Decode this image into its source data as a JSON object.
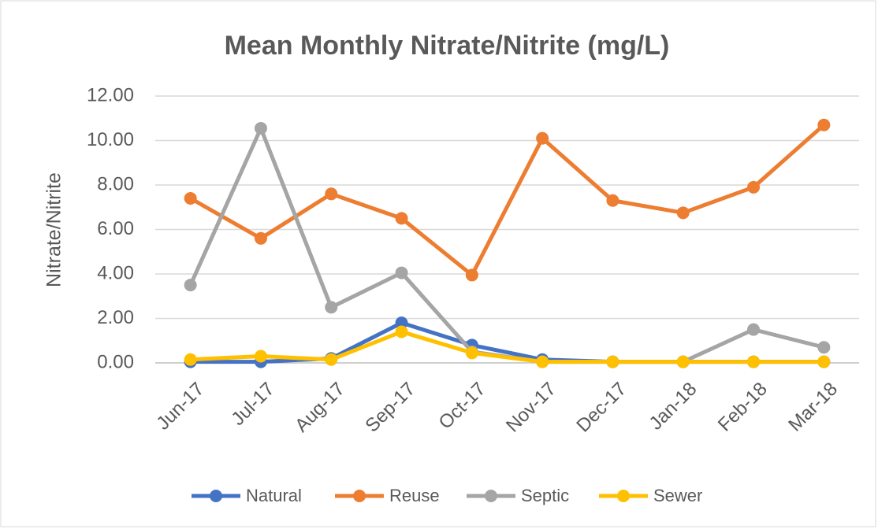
{
  "chart_data": {
    "type": "line",
    "title": "Mean Monthly Nitrate/Nitrite (mg/L)",
    "y_label": "Nitrate/Nitrite",
    "categories": [
      "Jun-17",
      "Jul-17",
      "Aug-17",
      "Sep-17",
      "Oct-17",
      "Nov-17",
      "Dec-17",
      "Jan-18",
      "Feb-18",
      "Mar-18"
    ],
    "series": [
      {
        "name": "Natural",
        "color": "#4472c4",
        "values": [
          0.05,
          0.05,
          0.2,
          1.8,
          0.8,
          0.15,
          0.05,
          0.05,
          0.05,
          0.05
        ]
      },
      {
        "name": "Reuse",
        "color": "#ed7d31",
        "values": [
          7.4,
          5.6,
          7.6,
          6.5,
          3.95,
          10.1,
          7.3,
          6.75,
          7.9,
          10.7
        ]
      },
      {
        "name": "Septic",
        "color": "#a5a5a5",
        "values": [
          3.5,
          10.55,
          2.5,
          4.05,
          0.5,
          0.05,
          0.05,
          0.05,
          1.5,
          0.7
        ]
      },
      {
        "name": "Sewer",
        "color": "#ffc000",
        "values": [
          0.15,
          0.3,
          0.15,
          1.4,
          0.45,
          0.05,
          0.05,
          0.05,
          0.05,
          0.05
        ]
      }
    ],
    "ylim": [
      0,
      12
    ],
    "yticks": [
      {
        "value": 0,
        "label": "0.00"
      },
      {
        "value": 2,
        "label": "2.00"
      },
      {
        "value": 4,
        "label": "4.00"
      },
      {
        "value": 6,
        "label": "6.00"
      },
      {
        "value": 8,
        "label": "8.00"
      },
      {
        "value": 10,
        "label": "10.00"
      },
      {
        "value": 12,
        "label": "12.00"
      }
    ],
    "grid": true,
    "legend": "bottom"
  }
}
